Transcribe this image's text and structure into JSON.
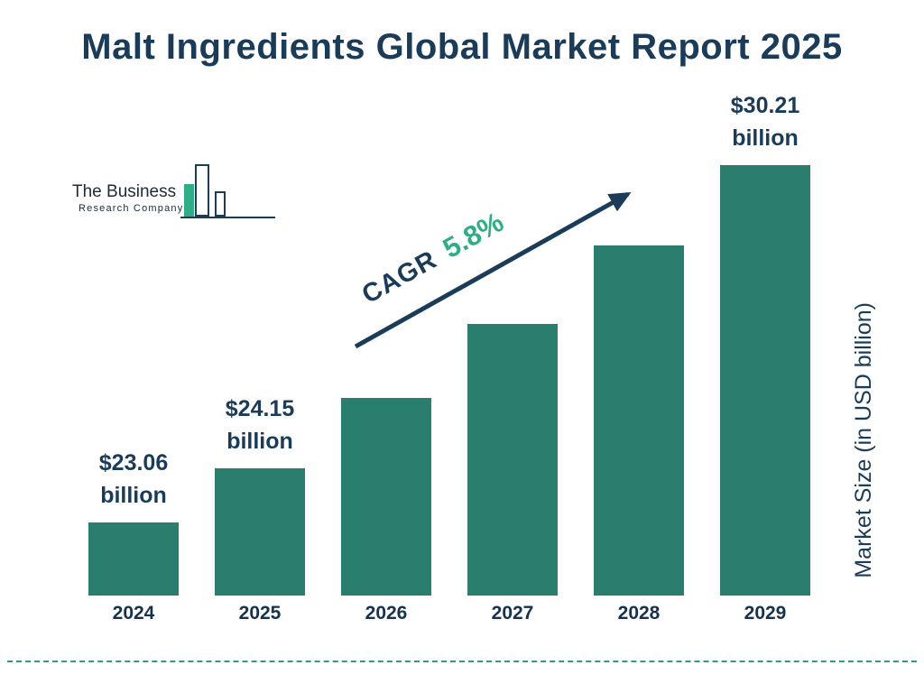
{
  "title": "Malt Ingredients Global Market Report 2025",
  "logo": {
    "line1": "The Business",
    "line2": "Research Company"
  },
  "cagr": {
    "label": "CAGR",
    "value": "5.8%"
  },
  "colors": {
    "bar": "#2a7e6e",
    "navy": "#1b3c59",
    "teal_accent": "#2fae84",
    "divider": "#2e9c85"
  },
  "chart_data": {
    "type": "bar",
    "title": "Malt Ingredients Global Market Report 2025",
    "categories": [
      "2024",
      "2025",
      "2026",
      "2027",
      "2028",
      "2029"
    ],
    "values": [
      23.06,
      24.15,
      25.55,
      27.03,
      28.6,
      30.21
    ],
    "value_labels": [
      {
        "index": 0,
        "lines": [
          "$23.06",
          "billion"
        ]
      },
      {
        "index": 1,
        "lines": [
          "$24.15",
          "billion"
        ]
      },
      {
        "index": 5,
        "lines": [
          "$30.21",
          "billion"
        ]
      }
    ],
    "xlabel": "",
    "ylabel": "Market Size (in USD billion)",
    "ylim": [
      21.6,
      30.21
    ],
    "grid": false,
    "legend": false,
    "annotations": [
      "CAGR 5.8%"
    ]
  }
}
